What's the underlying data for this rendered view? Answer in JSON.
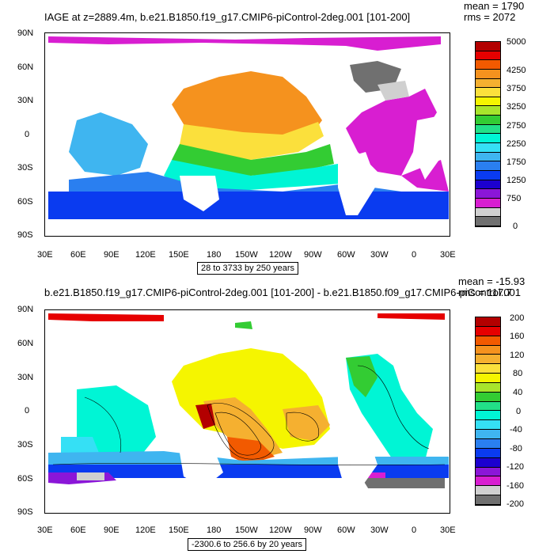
{
  "panel1": {
    "title": "IAGE at z=2889.4m, b.e21.B1850.f19_g17.CMIP6-piControl-2deg.001 [101-200]",
    "mean_label": "mean = 1790",
    "rms_label": "rms = 2072",
    "range_label": "28 to 3733 by 250 years",
    "colorbar_labels": [
      "5000",
      "4250",
      "3750",
      "3250",
      "2750",
      "2250",
      "1750",
      "1250",
      "750",
      "0"
    ],
    "colorbar_colors": [
      "#b30000",
      "#e60000",
      "#f25a00",
      "#f5921e",
      "#f5b030",
      "#fbe03c",
      "#f5f500",
      "#a8e52c",
      "#33cc33",
      "#22e088",
      "#00f5d5",
      "#35e0f5",
      "#3fb5f0",
      "#2a7ff0",
      "#0a3bf0",
      "#1c00cf",
      "#8b16d8",
      "#d81ed1",
      "#d0d0d0",
      "#707070"
    ]
  },
  "panel2": {
    "title": "b.e21.B1850.f19_g17.CMIP6-piControl-2deg.001 [101-200] - b.e21.B1850.f09_g17.CMIP6-piControl.001",
    "mean_label": "mean = -15.93",
    "rms_label": "rms = 117.7",
    "range_label": "-2300.6 to 256.6 by 20 years",
    "colorbar_labels": [
      "200",
      "160",
      "120",
      "80",
      "40",
      "0",
      "-40",
      "-80",
      "-120",
      "-160",
      "-200"
    ],
    "colorbar_colors": [
      "#b30000",
      "#e60000",
      "#f25a00",
      "#f5921e",
      "#f5b030",
      "#fbe03c",
      "#f5f500",
      "#a8e52c",
      "#33cc33",
      "#22e088",
      "#00f5d5",
      "#35e0f5",
      "#3fb5f0",
      "#2a7ff0",
      "#0a3bf0",
      "#1c00cf",
      "#8b16d8",
      "#d81ed1",
      "#d0d0d0",
      "#707070"
    ]
  },
  "lat_labels": [
    "90N",
    "60N",
    "30N",
    "0",
    "30S",
    "60S",
    "90S"
  ],
  "lon_labels": [
    "30E",
    "60E",
    "90E",
    "120E",
    "150E",
    "180",
    "150W",
    "120W",
    "90W",
    "60W",
    "30W",
    "0",
    "30E"
  ]
}
